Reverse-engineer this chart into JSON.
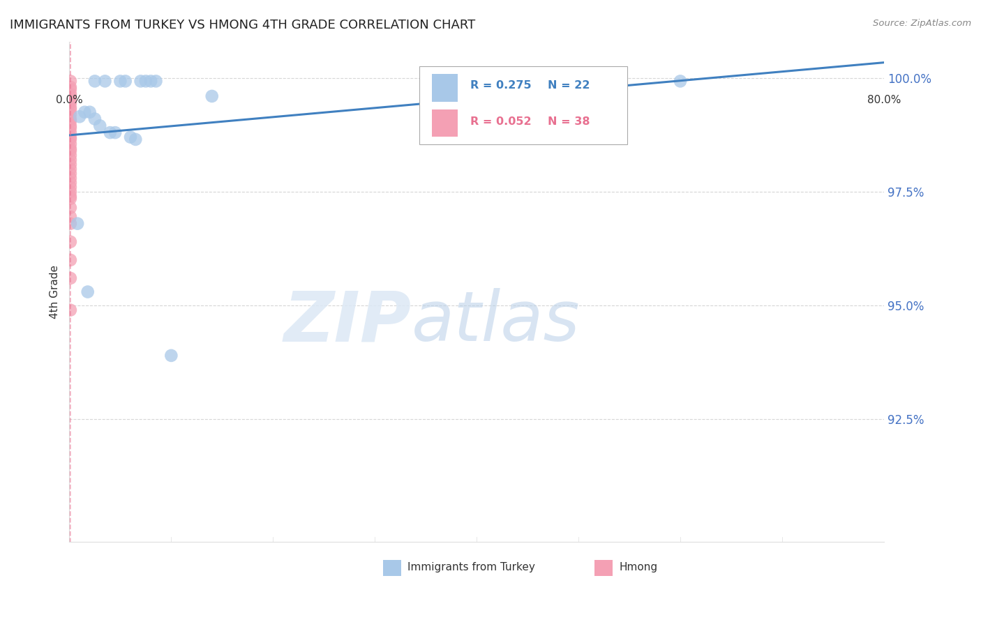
{
  "title": "IMMIGRANTS FROM TURKEY VS HMONG 4TH GRADE CORRELATION CHART",
  "source": "Source: ZipAtlas.com",
  "ylabel": "4th Grade",
  "ytick_labels": [
    "100.0%",
    "97.5%",
    "95.0%",
    "92.5%"
  ],
  "ytick_values": [
    1.0,
    0.975,
    0.95,
    0.925
  ],
  "xmin": 0.0,
  "xmax": 0.8,
  "ymin": 0.898,
  "ymax": 1.008,
  "turkey_color": "#a8c8e8",
  "hmong_color": "#f4a0b4",
  "turkey_line_color": "#4080c0",
  "hmong_line_color": "#e87090",
  "turkey_scatter_x": [
    0.025,
    0.035,
    0.05,
    0.055,
    0.07,
    0.075,
    0.08,
    0.085,
    0.01,
    0.015,
    0.02,
    0.025,
    0.03,
    0.04,
    0.045,
    0.06,
    0.065,
    0.008,
    0.018,
    0.1,
    0.6,
    0.14
  ],
  "turkey_scatter_y": [
    0.9993,
    0.9993,
    0.9993,
    0.9993,
    0.9993,
    0.9993,
    0.9993,
    0.9993,
    0.9915,
    0.9925,
    0.9925,
    0.991,
    0.9895,
    0.988,
    0.988,
    0.987,
    0.9865,
    0.968,
    0.953,
    0.939,
    0.9993,
    0.996
  ],
  "hmong_scatter_x": [
    0.001,
    0.001,
    0.001,
    0.001,
    0.001,
    0.001,
    0.001,
    0.001,
    0.001,
    0.001,
    0.001,
    0.001,
    0.001,
    0.001,
    0.001,
    0.001,
    0.001,
    0.001,
    0.001,
    0.001,
    0.001,
    0.001,
    0.001,
    0.001,
    0.001,
    0.001,
    0.001,
    0.001,
    0.001,
    0.001,
    0.001,
    0.001,
    0.001,
    0.001,
    0.001,
    0.001,
    0.001,
    0.001
  ],
  "hmong_scatter_y": [
    0.9993,
    0.998,
    0.9975,
    0.9965,
    0.996,
    0.995,
    0.9945,
    0.9935,
    0.993,
    0.992,
    0.991,
    0.9905,
    0.9895,
    0.989,
    0.988,
    0.987,
    0.9865,
    0.9855,
    0.9845,
    0.984,
    0.983,
    0.982,
    0.981,
    0.98,
    0.979,
    0.978,
    0.977,
    0.976,
    0.975,
    0.974,
    0.9735,
    0.9715,
    0.9695,
    0.968,
    0.964,
    0.96,
    0.956,
    0.949
  ],
  "watermark_zip": "ZIP",
  "watermark_atlas": "atlas",
  "background_color": "#ffffff",
  "grid_color": "#cccccc",
  "legend_r1": "R = 0.275",
  "legend_n1": "N = 22",
  "legend_r2": "R = 0.052",
  "legend_n2": "N = 38",
  "bottom_label1": "Immigrants from Turkey",
  "bottom_label2": "Hmong"
}
